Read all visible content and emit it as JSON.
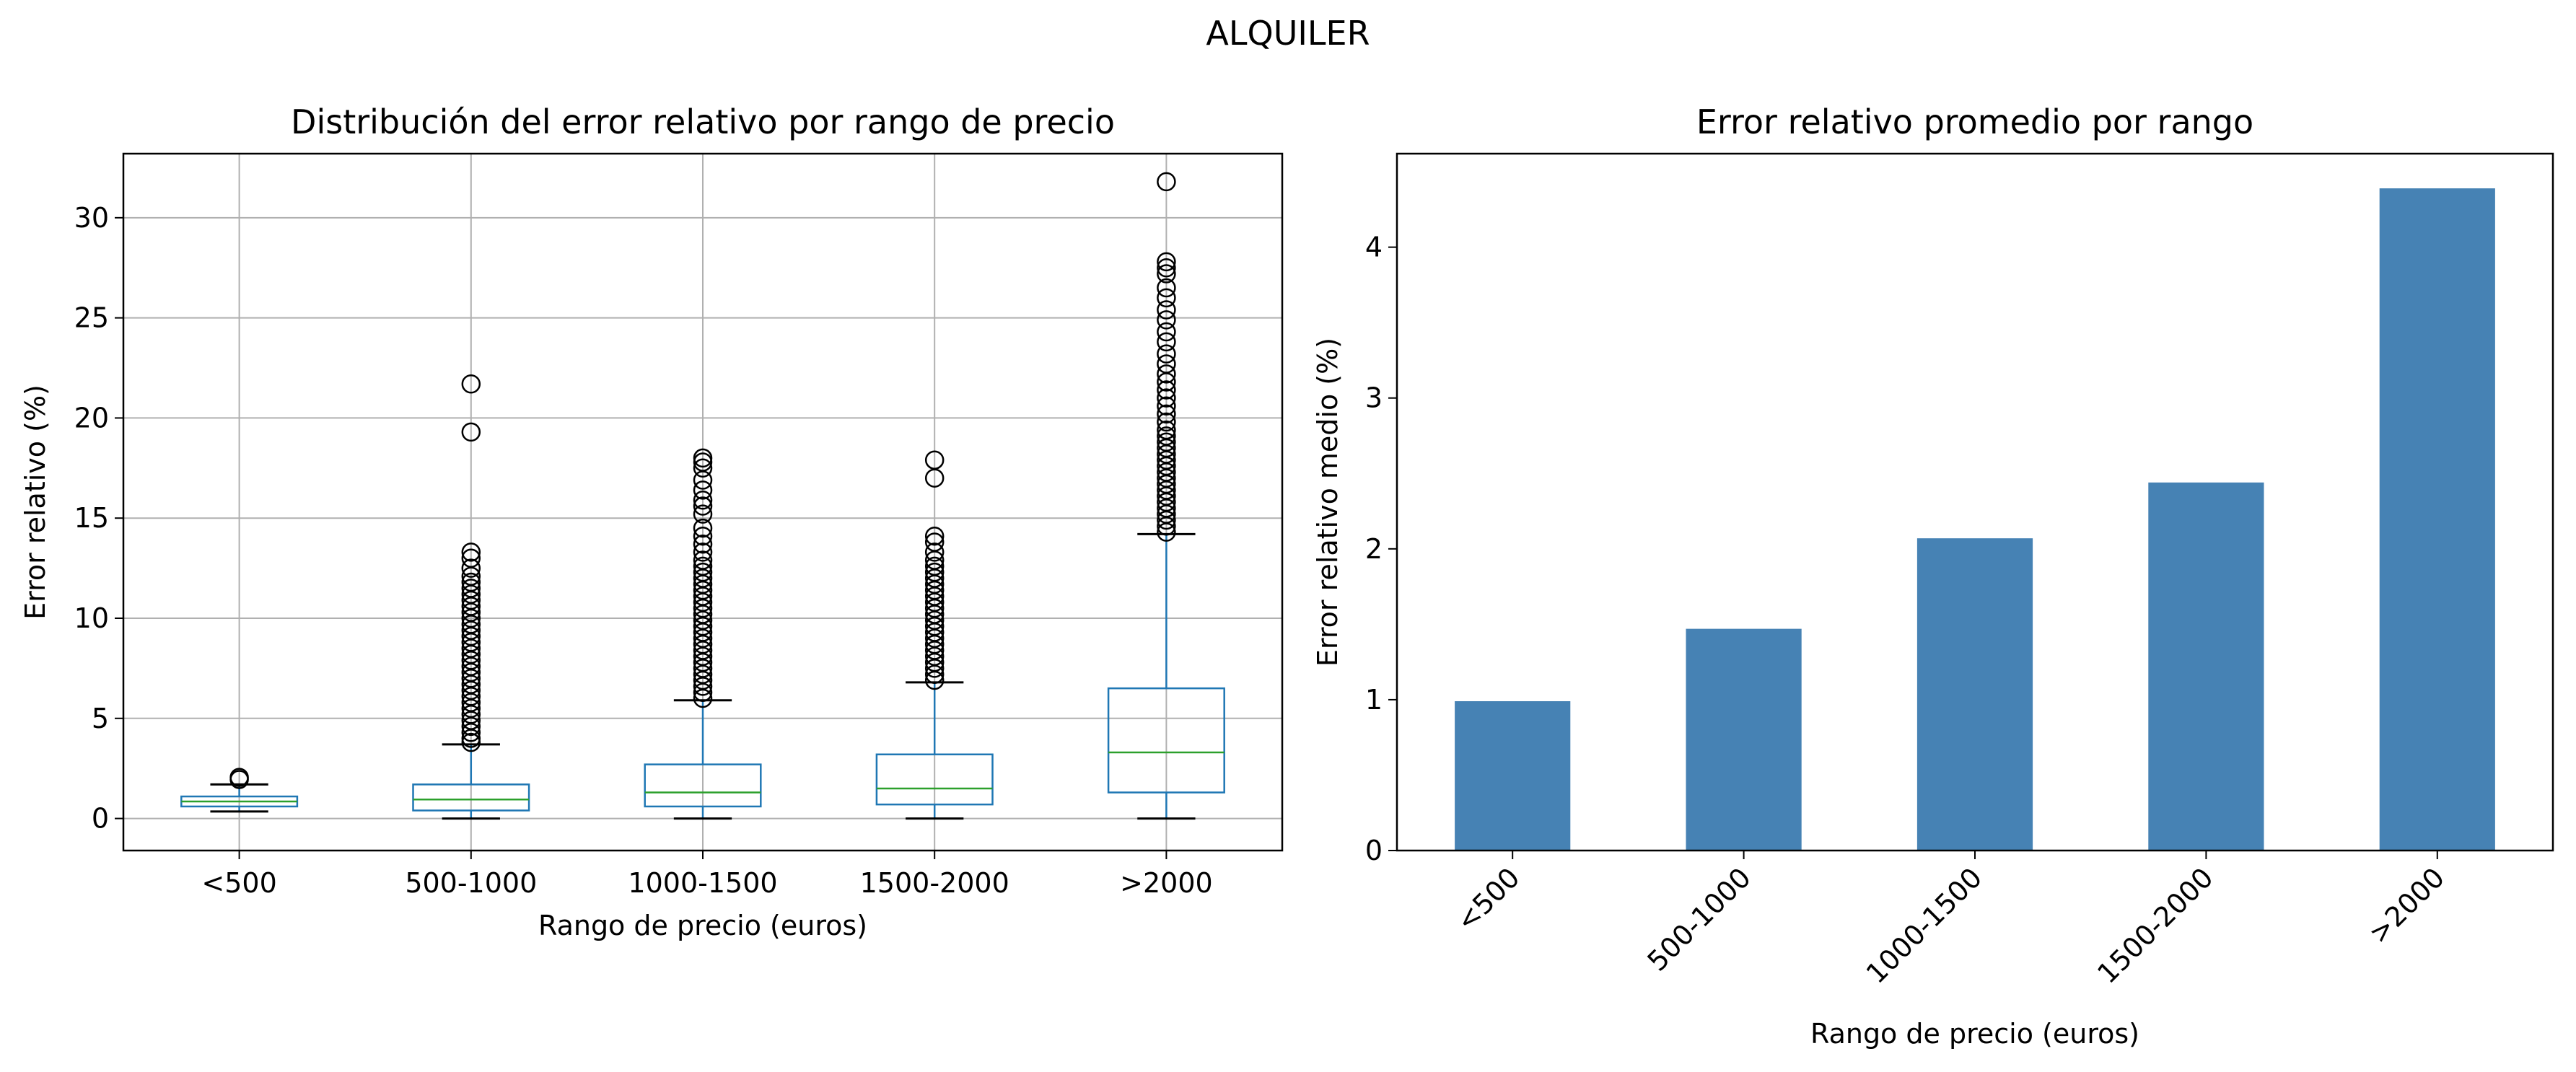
{
  "figure": {
    "suptitle": "ALQUILER"
  },
  "chart_data": [
    {
      "type": "box",
      "title": "Distribución del error relativo por rango de precio",
      "xlabel": "Rango de precio (euros)",
      "ylabel": "Error relativo (%)",
      "ylim": [
        -1.6,
        33.2
      ],
      "yticks": [
        0,
        5,
        10,
        15,
        20,
        25,
        30
      ],
      "grid": true,
      "box_color": "#1f77b4",
      "median_color": "#2ca02c",
      "categories": [
        "<500",
        "500-1000",
        "1000-1500",
        "1500-2000",
        ">2000"
      ],
      "boxes": [
        {
          "whislo": 0.35,
          "q1": 0.6,
          "med": 0.85,
          "q3": 1.1,
          "whishi": 1.7,
          "fliers": [
            1.95,
            2.05
          ]
        },
        {
          "whislo": 0.0,
          "q1": 0.4,
          "med": 0.95,
          "q3": 1.7,
          "whishi": 3.7,
          "fliers": [
            3.8,
            4.0,
            4.3,
            4.6,
            4.9,
            5.2,
            5.5,
            5.8,
            6.1,
            6.4,
            6.7,
            7.0,
            7.3,
            7.6,
            7.9,
            8.2,
            8.5,
            8.8,
            9.1,
            9.4,
            9.7,
            10.0,
            10.3,
            10.6,
            10.9,
            11.2,
            11.5,
            11.8,
            12.1,
            12.5,
            13.0,
            13.3,
            19.3,
            21.7
          ]
        },
        {
          "whislo": 0.0,
          "q1": 0.6,
          "med": 1.3,
          "q3": 2.7,
          "whishi": 5.9,
          "fliers": [
            6.0,
            6.3,
            6.6,
            6.9,
            7.2,
            7.5,
            7.8,
            8.1,
            8.4,
            8.7,
            9.0,
            9.3,
            9.6,
            9.9,
            10.2,
            10.5,
            10.8,
            11.1,
            11.4,
            11.7,
            12.0,
            12.3,
            12.6,
            12.9,
            13.3,
            13.7,
            14.1,
            14.5,
            15.2,
            15.6,
            15.9,
            16.4,
            16.9,
            17.5,
            17.8,
            18.0
          ]
        },
        {
          "whislo": 0.0,
          "q1": 0.7,
          "med": 1.5,
          "q3": 3.2,
          "whishi": 6.8,
          "fliers": [
            6.9,
            7.2,
            7.5,
            7.8,
            8.1,
            8.4,
            8.7,
            9.0,
            9.3,
            9.6,
            9.9,
            10.2,
            10.5,
            10.8,
            11.1,
            11.4,
            11.7,
            12.0,
            12.3,
            12.6,
            12.9,
            13.3,
            13.8,
            14.1,
            17.0,
            17.9
          ]
        },
        {
          "whislo": 0.0,
          "q1": 1.3,
          "med": 3.3,
          "q3": 6.5,
          "whishi": 14.2,
          "fliers": [
            14.3,
            14.6,
            14.9,
            15.2,
            15.5,
            15.8,
            16.1,
            16.4,
            16.7,
            17.0,
            17.3,
            17.6,
            17.9,
            18.2,
            18.5,
            18.8,
            19.1,
            19.4,
            19.8,
            20.2,
            20.6,
            21.0,
            21.4,
            21.8,
            22.2,
            22.7,
            23.2,
            23.8,
            24.3,
            24.9,
            25.4,
            26.0,
            26.5,
            27.2,
            27.5,
            27.8,
            31.8
          ]
        }
      ]
    },
    {
      "type": "bar",
      "title": "Error relativo promedio por rango",
      "xlabel": "Rango de precio (euros)",
      "ylabel": "Error relativo medio (%)",
      "ylim": [
        0,
        4.62
      ],
      "yticks": [
        0,
        1,
        2,
        3,
        4
      ],
      "grid": false,
      "bar_color": "#4682b4",
      "tick_rotation": 45,
      "categories": [
        "<500",
        "500-1000",
        "1000-1500",
        "1500-2000",
        ">2000"
      ],
      "values": [
        0.99,
        1.47,
        2.07,
        2.44,
        4.39
      ]
    }
  ]
}
